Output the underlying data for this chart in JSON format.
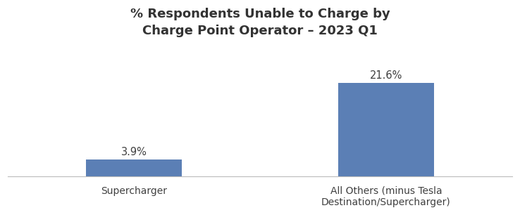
{
  "title": "% Respondents Unable to Charge by\nCharge Point Operator – 2023 Q1",
  "categories": [
    "Supercharger",
    "All Others (minus Tesla\nDestination/Supercharger)"
  ],
  "values": [
    3.9,
    21.6
  ],
  "bar_color": "#5b7fb5",
  "bar_labels": [
    "3.9%",
    "21.6%"
  ],
  "ylim": [
    0,
    30
  ],
  "xlim": [
    -0.5,
    1.5
  ],
  "bar_positions": [
    0,
    1
  ],
  "bar_width": 0.38,
  "title_fontsize": 13,
  "label_fontsize": 10.5,
  "tick_fontsize": 10,
  "background_color": "#ffffff",
  "figsize": [
    7.38,
    3.06
  ],
  "dpi": 100
}
